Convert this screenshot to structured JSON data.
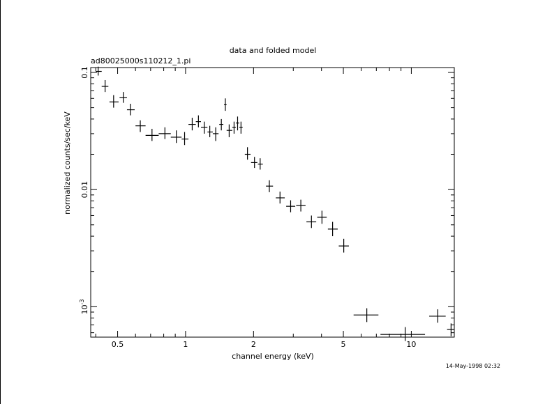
{
  "chart_data": {
    "type": "scatter",
    "title": "data and folded model",
    "subtitle": "ad80025000s110212_1.pi",
    "xlabel": "channel energy (keV)",
    "ylabel": "normalized counts/sec/keV",
    "x_scale": "log",
    "y_scale": "log",
    "xlim": [
      0.38,
      15.5
    ],
    "ylim": [
      0.00055,
      0.11
    ],
    "x_ticks": [
      {
        "value": 0.5,
        "label": "0.5"
      },
      {
        "value": 1,
        "label": "1"
      },
      {
        "value": 2,
        "label": "2"
      },
      {
        "value": 5,
        "label": "5"
      },
      {
        "value": 10,
        "label": "10"
      }
    ],
    "y_ticks": [
      {
        "value": 0.1,
        "label": "0.1"
      },
      {
        "value": 0.01,
        "label": "0.01"
      },
      {
        "value": 0.001,
        "label": "10^-3"
      }
    ],
    "timestamp": "14-May-1998 02:32",
    "series": [
      {
        "points": [
          {
            "x": 0.41,
            "y": 0.102,
            "xerr": [
              0.4,
              0.425
            ],
            "yerr": [
              0.094,
              0.112
            ]
          },
          {
            "x": 0.44,
            "y": 0.076,
            "xerr": [
              0.425,
              0.455
            ],
            "yerr": [
              0.068,
              0.086
            ]
          },
          {
            "x": 0.48,
            "y": 0.056,
            "xerr": [
              0.46,
              0.505
            ],
            "yerr": [
              0.05,
              0.064
            ]
          },
          {
            "x": 0.53,
            "y": 0.061,
            "xerr": [
              0.51,
              0.55
            ],
            "yerr": [
              0.055,
              0.068
            ]
          },
          {
            "x": 0.57,
            "y": 0.048,
            "xerr": [
              0.55,
              0.595
            ],
            "yerr": [
              0.043,
              0.054
            ]
          },
          {
            "x": 0.63,
            "y": 0.035,
            "xerr": [
              0.6,
              0.665
            ],
            "yerr": [
              0.031,
              0.039
            ]
          },
          {
            "x": 0.71,
            "y": 0.029,
            "xerr": [
              0.665,
              0.76
            ],
            "yerr": [
              0.026,
              0.033
            ]
          },
          {
            "x": 0.81,
            "y": 0.03,
            "xerr": [
              0.76,
              0.86
            ],
            "yerr": [
              0.027,
              0.034
            ]
          },
          {
            "x": 0.91,
            "y": 0.028,
            "xerr": [
              0.86,
              0.96
            ],
            "yerr": [
              0.025,
              0.032
            ]
          },
          {
            "x": 0.99,
            "y": 0.027,
            "xerr": [
              0.96,
              1.03
            ],
            "yerr": [
              0.024,
              0.031
            ]
          },
          {
            "x": 1.07,
            "y": 0.036,
            "xerr": [
              1.03,
              1.11
            ],
            "yerr": [
              0.032,
              0.041
            ]
          },
          {
            "x": 1.14,
            "y": 0.038,
            "xerr": [
              1.11,
              1.17
            ],
            "yerr": [
              0.034,
              0.043
            ]
          },
          {
            "x": 1.21,
            "y": 0.034,
            "xerr": [
              1.17,
              1.25
            ],
            "yerr": [
              0.03,
              0.038
            ]
          },
          {
            "x": 1.28,
            "y": 0.031,
            "xerr": [
              1.25,
              1.32
            ],
            "yerr": [
              0.028,
              0.035
            ]
          },
          {
            "x": 1.36,
            "y": 0.03,
            "xerr": [
              1.32,
              1.4
            ],
            "yerr": [
              0.026,
              0.034
            ]
          },
          {
            "x": 1.44,
            "y": 0.036,
            "xerr": [
              1.41,
              1.47
            ],
            "yerr": [
              0.032,
              0.04
            ]
          },
          {
            "x": 1.5,
            "y": 0.053,
            "xerr": [
              1.48,
              1.52
            ],
            "yerr": [
              0.047,
              0.06
            ]
          },
          {
            "x": 1.56,
            "y": 0.032,
            "xerr": [
              1.52,
              1.61
            ],
            "yerr": [
              0.028,
              0.036
            ]
          },
          {
            "x": 1.64,
            "y": 0.034,
            "xerr": [
              1.61,
              1.67
            ],
            "yerr": [
              0.03,
              0.038
            ]
          },
          {
            "x": 1.7,
            "y": 0.037,
            "xerr": [
              1.67,
              1.73
            ],
            "yerr": [
              0.032,
              0.042
            ]
          },
          {
            "x": 1.76,
            "y": 0.034,
            "xerr": [
              1.73,
              1.79
            ],
            "yerr": [
              0.03,
              0.038
            ]
          },
          {
            "x": 1.88,
            "y": 0.02,
            "xerr": [
              1.83,
              1.94
            ],
            "yerr": [
              0.018,
              0.023
            ]
          },
          {
            "x": 2.02,
            "y": 0.017,
            "xerr": [
              1.95,
              2.08
            ],
            "yerr": [
              0.0153,
              0.019
            ]
          },
          {
            "x": 2.14,
            "y": 0.0165,
            "xerr": [
              2.09,
              2.2
            ],
            "yerr": [
              0.0148,
              0.0185
            ]
          },
          {
            "x": 2.35,
            "y": 0.0107,
            "xerr": [
              2.27,
              2.44
            ],
            "yerr": [
              0.0095,
              0.012
            ]
          },
          {
            "x": 2.62,
            "y": 0.0085,
            "xerr": [
              2.51,
              2.75
            ],
            "yerr": [
              0.0076,
              0.0096
            ]
          },
          {
            "x": 2.92,
            "y": 0.0072,
            "xerr": [
              2.79,
              3.06
            ],
            "yerr": [
              0.0064,
              0.0081
            ]
          },
          {
            "x": 3.24,
            "y": 0.0073,
            "xerr": [
              3.09,
              3.4
            ],
            "yerr": [
              0.0065,
              0.0082
            ]
          },
          {
            "x": 3.61,
            "y": 0.0053,
            "xerr": [
              3.43,
              3.79
            ],
            "yerr": [
              0.0047,
              0.006
            ]
          },
          {
            "x": 4.02,
            "y": 0.0058,
            "xerr": [
              3.83,
              4.22
            ],
            "yerr": [
              0.0051,
              0.0066
            ]
          },
          {
            "x": 4.48,
            "y": 0.0046,
            "xerr": [
              4.27,
              4.72
            ],
            "yerr": [
              0.004,
              0.0053
            ]
          },
          {
            "x": 5.02,
            "y": 0.0033,
            "xerr": [
              4.77,
              5.29
            ],
            "yerr": [
              0.0029,
              0.0038
            ]
          },
          {
            "x": 6.35,
            "y": 0.00085,
            "xerr": [
              5.55,
              7.15
            ],
            "yerr": [
              0.00074,
              0.00097
            ]
          },
          {
            "x": 9.4,
            "y": 0.00058,
            "xerr": [
              7.3,
              11.5
            ],
            "yerr": [
              0.00051,
              0.00067
            ]
          },
          {
            "x": 13.1,
            "y": 0.00083,
            "xerr": [
              12.0,
              14.2
            ],
            "yerr": [
              0.00073,
              0.00095
            ]
          },
          {
            "x": 15.0,
            "y": 0.00064,
            "xerr": [
              14.4,
              15.5
            ],
            "yerr": [
              0.00056,
              0.00072
            ]
          }
        ]
      }
    ]
  }
}
